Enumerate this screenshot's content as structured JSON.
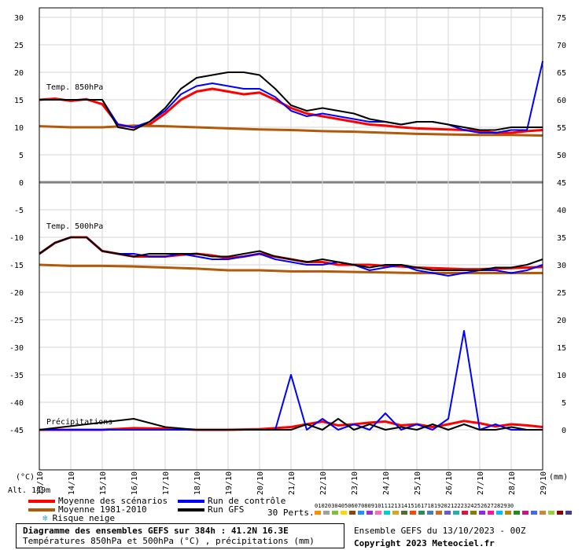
{
  "chart_data": {
    "type": "line",
    "title": "Diagramme des ensembles GEFS sur 384h : 41.2N 16.3E",
    "subtitle": "Températures 850hPa et 500hPa (°C) , précipitations (mm)",
    "left_axis": {
      "unit_label": "(°C)",
      "ticks": [
        30,
        25,
        20,
        15,
        10,
        5,
        0,
        -5,
        -10,
        -15,
        -20,
        -25,
        -30,
        -35,
        -40,
        -45
      ],
      "range": [
        -45,
        30
      ]
    },
    "right_axis": {
      "unit_label": "(mm)",
      "ticks": [
        75,
        70,
        65,
        60,
        55,
        50,
        45,
        40,
        35,
        30,
        25,
        20,
        15,
        10,
        5,
        0
      ],
      "range": [
        0,
        75
      ]
    },
    "x_ticks": [
      "13/10",
      "14/10",
      "15/10",
      "16/10",
      "17/10",
      "18/10",
      "19/10",
      "20/10",
      "21/10",
      "22/10",
      "23/10",
      "24/10",
      "25/10",
      "26/10",
      "27/10",
      "28/10",
      "29/10"
    ],
    "panel_labels": {
      "t850": "Temp. 850hPa",
      "t500": "Temp. 500hPa",
      "precip": "Précipitations"
    },
    "altitude": "Alt. 149m",
    "grid": true,
    "series": [
      {
        "name": "Moyenne des scénarios",
        "panel": "t850",
        "color": "#ff0000",
        "x": [
          0,
          0.5,
          1,
          1.5,
          2,
          2.5,
          3,
          3.5,
          4,
          4.5,
          5,
          5.5,
          6,
          6.5,
          7,
          7.5,
          8,
          8.5,
          9,
          9.5,
          10,
          10.5,
          11,
          11.5,
          12,
          12.5,
          13,
          13.5,
          14,
          14.5,
          15,
          15.5,
          16
        ],
        "values": [
          15,
          15.2,
          14.8,
          15.1,
          14.2,
          10.5,
          10,
          10.5,
          12.5,
          15,
          16.5,
          17,
          16.5,
          16,
          16.3,
          15,
          13.5,
          12.5,
          12,
          11.5,
          11,
          10.5,
          10.3,
          10,
          9.8,
          9.7,
          9.6,
          9.5,
          9.3,
          9,
          9,
          9.3,
          9.5
        ]
      },
      {
        "name": "Moyenne 1981-2010",
        "panel": "t850",
        "color": "#b25a0a",
        "x": [
          0,
          1,
          2,
          3,
          4,
          5,
          6,
          7,
          8,
          9,
          10,
          11,
          12,
          13,
          14,
          15,
          16
        ],
        "values": [
          10.2,
          10,
          10,
          10.3,
          10.2,
          10,
          9.8,
          9.6,
          9.5,
          9.3,
          9.2,
          9,
          8.8,
          8.7,
          8.6,
          8.6,
          8.5
        ]
      },
      {
        "name": "Run de contrôle",
        "panel": "t850",
        "color": "#0000ff",
        "x": [
          0,
          0.5,
          1,
          1.5,
          2,
          2.5,
          3,
          3.5,
          4,
          4.5,
          5,
          5.5,
          6,
          6.5,
          7,
          7.5,
          8,
          8.5,
          9,
          9.5,
          10,
          10.5,
          11,
          11.5,
          12,
          12.5,
          13,
          13.5,
          14,
          14.5,
          15,
          15.5,
          16
        ],
        "values": [
          15,
          15,
          15,
          15,
          15,
          10.5,
          10,
          11,
          13,
          16,
          17.5,
          18,
          17.5,
          17,
          17,
          15.5,
          13,
          12,
          12.5,
          12,
          11.5,
          11,
          11,
          10.5,
          11,
          11,
          10.5,
          9.5,
          9,
          9,
          9.5,
          9.5,
          22
        ]
      },
      {
        "name": "Run GFS",
        "panel": "t850",
        "color": "#000000",
        "x": [
          0,
          0.5,
          1,
          1.5,
          2,
          2.5,
          3,
          3.5,
          4,
          4.5,
          5,
          5.5,
          6,
          6.5,
          7,
          7.5,
          8,
          8.5,
          9,
          9.5,
          10,
          10.5,
          11,
          11.5,
          12,
          12.5,
          13,
          13.5,
          14,
          14.5,
          15,
          15.5,
          16
        ],
        "values": [
          15,
          15,
          15,
          15,
          15,
          10,
          9.5,
          11,
          13.5,
          17,
          19,
          19.5,
          20,
          20,
          19.5,
          17,
          14,
          13,
          13.5,
          13,
          12.5,
          11.5,
          11,
          10.5,
          11,
          11,
          10.5,
          10,
          9.5,
          9.5,
          10,
          10,
          10
        ]
      },
      {
        "name": "Moyenne des scénarios",
        "panel": "t500",
        "color": "#ff0000",
        "x": [
          0,
          0.5,
          1,
          1.5,
          2,
          2.5,
          3,
          3.5,
          4,
          4.5,
          5,
          5.5,
          6,
          6.5,
          7,
          7.5,
          8,
          8.5,
          9,
          9.5,
          10,
          10.5,
          11,
          11.5,
          12,
          12.5,
          13,
          13.5,
          14,
          14.5,
          15,
          15.5,
          16
        ],
        "values": [
          -13,
          -11,
          -10,
          -10,
          -12.5,
          -13,
          -13.5,
          -13.5,
          -13.5,
          -13.2,
          -13,
          -13.3,
          -13.8,
          -13.5,
          -13,
          -13.5,
          -14,
          -14.5,
          -14.5,
          -15,
          -15,
          -15,
          -15.2,
          -15.3,
          -15.5,
          -15.6,
          -15.7,
          -15.8,
          -15.8,
          -15.7,
          -15.6,
          -15.5,
          -15.4
        ]
      },
      {
        "name": "Moyenne 1981-2010",
        "panel": "t500",
        "color": "#b25a0a",
        "x": [
          0,
          1,
          2,
          3,
          4,
          5,
          6,
          7,
          8,
          9,
          10,
          11,
          12,
          13,
          14,
          15,
          16
        ],
        "values": [
          -15,
          -15.2,
          -15.2,
          -15.3,
          -15.5,
          -15.7,
          -16,
          -16,
          -16.2,
          -16.2,
          -16.3,
          -16.4,
          -16.5,
          -16.5,
          -16.5,
          -16.5,
          -16.5
        ]
      },
      {
        "name": "Run de contrôle",
        "panel": "t500",
        "color": "#0000ff",
        "x": [
          0,
          0.5,
          1,
          1.5,
          2,
          2.5,
          3,
          3.5,
          4,
          4.5,
          5,
          5.5,
          6,
          6.5,
          7,
          7.5,
          8,
          8.5,
          9,
          9.5,
          10,
          10.5,
          11,
          11.5,
          12,
          12.5,
          13,
          13.5,
          14,
          14.5,
          15,
          15.5,
          16
        ],
        "values": [
          -13,
          -11,
          -10,
          -10,
          -12.5,
          -13,
          -13,
          -13.5,
          -13.5,
          -13,
          -13.5,
          -14,
          -14,
          -13.5,
          -13,
          -14,
          -14.5,
          -15,
          -15,
          -14.5,
          -15,
          -16,
          -15.5,
          -15,
          -16,
          -16.5,
          -17,
          -16.5,
          -16,
          -16,
          -16.5,
          -16,
          -15
        ]
      },
      {
        "name": "Run GFS",
        "panel": "t500",
        "color": "#000000",
        "x": [
          0,
          0.5,
          1,
          1.5,
          2,
          2.5,
          3,
          3.5,
          4,
          4.5,
          5,
          5.5,
          6,
          6.5,
          7,
          7.5,
          8,
          8.5,
          9,
          9.5,
          10,
          10.5,
          11,
          11.5,
          12,
          12.5,
          13,
          13.5,
          14,
          14.5,
          15,
          15.5,
          16
        ],
        "values": [
          -13,
          -11,
          -10,
          -10,
          -12.5,
          -13,
          -13.5,
          -13,
          -13,
          -13,
          -13,
          -13.5,
          -13.5,
          -13,
          -12.5,
          -13.5,
          -14,
          -14.5,
          -14,
          -14.5,
          -15,
          -15.5,
          -15,
          -15,
          -15.5,
          -16,
          -16,
          -16,
          -16,
          -15.5,
          -15.5,
          -15,
          -14
        ]
      },
      {
        "name": "Moyenne des scénarios",
        "panel": "precip",
        "color": "#ff0000",
        "x": [
          0,
          1,
          2,
          3,
          4,
          5,
          6,
          7,
          8,
          8.5,
          9,
          9.5,
          10,
          10.5,
          11,
          11.5,
          12,
          12.5,
          13,
          13.5,
          14,
          14.5,
          15,
          15.5,
          16
        ],
        "values": [
          0,
          0,
          0,
          0.3,
          0.2,
          0,
          0,
          0.1,
          0.5,
          1,
          1.5,
          0.8,
          1,
          1.3,
          1.5,
          0.8,
          1,
          0.5,
          1,
          1.6,
          1.2,
          0.6,
          1,
          0.8,
          0.5
        ]
      },
      {
        "name": "Run de contrôle",
        "panel": "precip",
        "color": "#0000ff",
        "x": [
          0,
          3,
          4,
          5,
          6,
          7,
          7.5,
          8,
          8.5,
          9,
          9.5,
          10,
          10.5,
          11,
          11.5,
          12,
          12.5,
          13,
          13.5,
          14,
          14.5,
          15,
          15.5,
          16
        ],
        "values": [
          0,
          0,
          0,
          0,
          0,
          0,
          0,
          10,
          0,
          2,
          0,
          1,
          0,
          3,
          0,
          1,
          0,
          2,
          18,
          0,
          1,
          0,
          0,
          0
        ]
      },
      {
        "name": "Run GFS",
        "panel": "precip",
        "color": "#000000",
        "x": [
          0,
          3,
          4,
          5,
          6,
          7,
          8,
          8.5,
          9,
          9.5,
          10,
          10.5,
          11,
          11.5,
          12,
          12.5,
          13,
          13.5,
          14,
          14.5,
          15,
          15.5,
          16
        ],
        "values": [
          0,
          2,
          0.5,
          0,
          0,
          0,
          0,
          1,
          0,
          2,
          0,
          1,
          0,
          0.5,
          0,
          1,
          0,
          1,
          0,
          0,
          0.5,
          0,
          0
        ]
      }
    ]
  },
  "legend": {
    "items": [
      {
        "label": "Moyenne des scénarios",
        "color": "#ff0000"
      },
      {
        "label": "Moyenne 1981-2010",
        "color": "#b25a0a"
      },
      {
        "label": "Risque neige",
        "color": "#3aa0d8"
      },
      {
        "label": "Run de contrôle",
        "color": "#0000ff"
      },
      {
        "label": "Run GFS",
        "color": "#000000"
      }
    ],
    "perts_label": "30 Perts.",
    "perts_numbers": [
      "01",
      "02",
      "03",
      "04",
      "05",
      "06",
      "07",
      "08",
      "09",
      "10",
      "11",
      "12",
      "13",
      "14",
      "15",
      "16",
      "17",
      "18",
      "19",
      "20",
      "21",
      "22",
      "23",
      "24",
      "25",
      "26",
      "27",
      "28",
      "29",
      "30"
    ],
    "perts_colors": [
      "#ff8c00",
      "#a0a0a0",
      "#7fbf3f",
      "#ffd700",
      "#8b4513",
      "#1e90ff",
      "#9932cc",
      "#ff69b4",
      "#00ced1",
      "#daa520",
      "#556b2f",
      "#ff4500",
      "#2e8b57",
      "#4682b4",
      "#d2691e",
      "#6a5acd",
      "#20b2aa",
      "#dc143c",
      "#808000",
      "#8a2be2",
      "#ff1493",
      "#00bfff",
      "#b8860b",
      "#228b22",
      "#c71585",
      "#4169e1",
      "#cd853f",
      "#9acd32",
      "#8b0000",
      "#483d8b"
    ]
  },
  "caption": {
    "title": "Diagramme des ensembles GEFS sur 384h : 41.2N 16.3E",
    "subtitle": "Températures 850hPa et 500hPa (°C) , précipitations (mm)",
    "ensemble_info": "Ensemble GEFS du 13/10/2023 - 00Z",
    "copyright": "Copyright 2023 Meteociel.fr"
  }
}
